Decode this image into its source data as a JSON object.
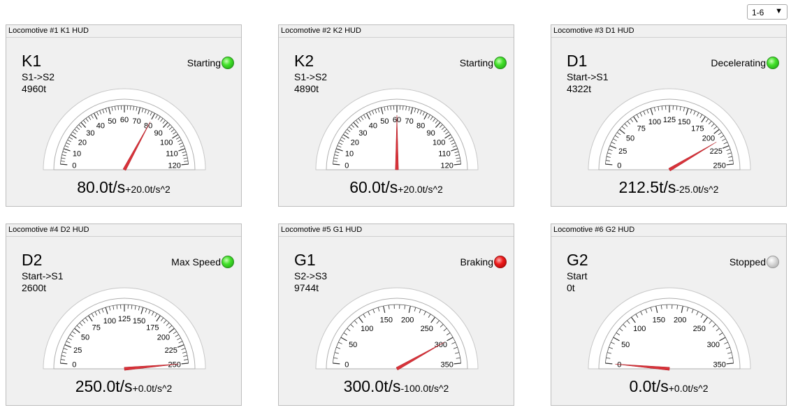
{
  "page_select": {
    "value": "1-6",
    "arrow": "▼"
  },
  "hud_label_suffix": "HUD",
  "locomotives": [
    {
      "header": "Locomotive #1 K1 HUD",
      "name": "K1",
      "route": "S1->S2",
      "weight": "4960t",
      "status": "Starting",
      "led": "green",
      "speed": 80.0,
      "speed_text": "80.0t/s",
      "accel_text": "+20.0t/s^2",
      "gauge_max": 120,
      "tick_labels": [
        "0",
        "10",
        "20",
        "30",
        "40",
        "50",
        "60",
        "70",
        "80",
        "90",
        "100",
        "110",
        "120"
      ]
    },
    {
      "header": "Locomotive #2 K2 HUD",
      "name": "K2",
      "route": "S1->S2",
      "weight": "4890t",
      "status": "Starting",
      "led": "green",
      "speed": 60.0,
      "speed_text": "60.0t/s",
      "accel_text": "+20.0t/s^2",
      "gauge_max": 120,
      "tick_labels": [
        "0",
        "10",
        "20",
        "30",
        "40",
        "50",
        "60",
        "70",
        "80",
        "90",
        "100",
        "110",
        "120"
      ]
    },
    {
      "header": "Locomotive #3 D1 HUD",
      "name": "D1",
      "route": "Start->S1",
      "weight": "4322t",
      "status": "Decelerating",
      "led": "green",
      "speed": 212.5,
      "speed_text": "212.5t/s",
      "accel_text": "-25.0t/s^2",
      "gauge_max": 250,
      "tick_labels": [
        "0",
        "25",
        "50",
        "75",
        "100",
        "125",
        "150",
        "175",
        "200",
        "225",
        "250"
      ]
    },
    {
      "header": "Locomotive #4 D2 HUD",
      "name": "D2",
      "route": "Start->S1",
      "weight": "2600t",
      "status": "Max Speed",
      "led": "green",
      "speed": 250.0,
      "speed_text": "250.0t/s",
      "accel_text": "+0.0t/s^2",
      "gauge_max": 250,
      "tick_labels": [
        "0",
        "25",
        "50",
        "75",
        "100",
        "125",
        "150",
        "175",
        "200",
        "225",
        "250"
      ]
    },
    {
      "header": "Locomotive #5 G1 HUD",
      "name": "G1",
      "route": "S2->S3",
      "weight": "9744t",
      "status": "Braking",
      "led": "red",
      "speed": 300.0,
      "speed_text": "300.0t/s",
      "accel_text": "-100.0t/s^2",
      "gauge_max": 350,
      "tick_labels": [
        "0",
        "50",
        "100",
        "150",
        "200",
        "250",
        "300",
        "350"
      ]
    },
    {
      "header": "Locomotive #6 G2 HUD",
      "name": "G2",
      "route": "Start",
      "weight": "0t",
      "status": "Stopped",
      "led": "grey",
      "speed": 0.0,
      "speed_text": "0.0t/s",
      "accel_text": "+0.0t/s^2",
      "gauge_max": 350,
      "tick_labels": [
        "0",
        "50",
        "100",
        "150",
        "200",
        "250",
        "300",
        "350"
      ]
    }
  ]
}
